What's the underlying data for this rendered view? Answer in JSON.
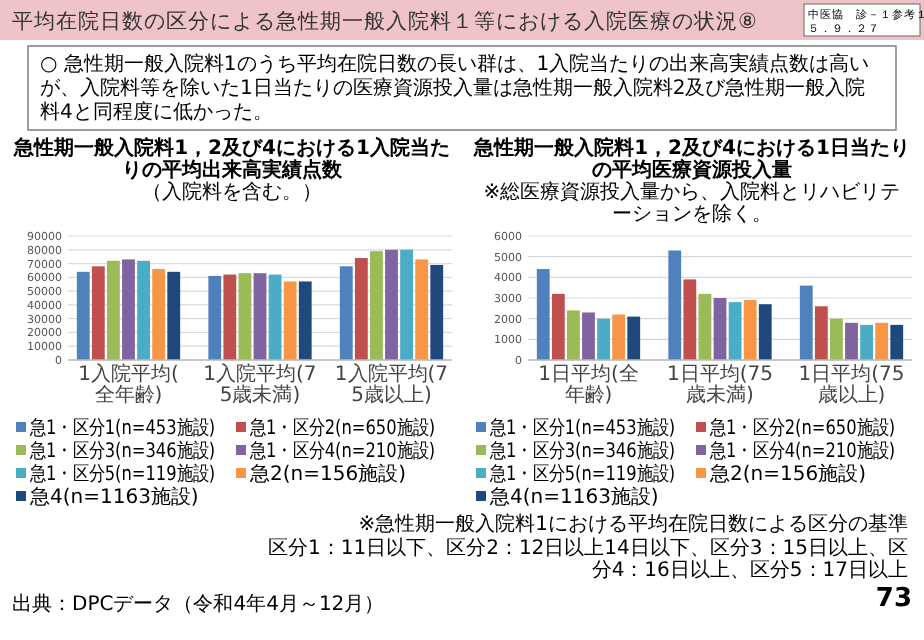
{
  "chart_data": [
    {
      "type": "other",
      "title": "平均在院日数の区分による急性期一般入院料１等における入院医療の状況⑧",
      "annotations": [
        "中医協　診－１参考１",
        "５．９．２７",
        "○ 急性期一般入院料1のうち平均在院日数の長い群は、1入院当たりの出来高実績点数は高いが、入院料等を除いた1日当たりの医療資源投入量は急性期一般入院料2及び急性期一般入院料4と同程度に低かった。",
        "※急性期一般入院料1における平均在院日数による区分の基準",
        "区分1：11日以下、区分2：12日以上14日以下、区分3：15日以上、区分4：16日以上、区分5：17日以上",
        "出典：DPCデータ（令和4年4月～12月）",
        "73"
      ]
    },
    {
      "type": "bar",
      "title": "急性期一般入院料1，2及び4における1入院当たりの平均出来高実績点数",
      "subtitle": "（入院料を含む。）",
      "categories": [
        "1入院平均(全年齢)",
        "1入院平均(75歳未満)",
        "1入院平均(75歳以上)"
      ],
      "ylim": [
        0,
        90000
      ],
      "yticks": [
        0,
        10000,
        20000,
        30000,
        40000,
        50000,
        60000,
        70000,
        80000,
        90000
      ],
      "grid": "y",
      "legend": "bottom",
      "series": [
        {
          "name": "急1・区分1(n=453施設)",
          "color": "#4f81bd",
          "values": [
            64000,
            61000,
            68000
          ]
        },
        {
          "name": "急1・区分2(n=650施設)",
          "color": "#c0504d",
          "values": [
            68000,
            62000,
            74000
          ]
        },
        {
          "name": "急1・区分3(n=346施設)",
          "color": "#9bbb59",
          "values": [
            72000,
            63000,
            79000
          ]
        },
        {
          "name": "急1・区分4(n=210施設)",
          "color": "#8064a2",
          "values": [
            73000,
            63000,
            80000
          ]
        },
        {
          "name": "急1・区分5(n=119施設)",
          "color": "#4bacc6",
          "values": [
            72000,
            62000,
            80000
          ]
        },
        {
          "name": "急2(n=156施設)",
          "color": "#f79646",
          "values": [
            66000,
            57000,
            73000
          ]
        },
        {
          "name": "急4(n=1163施設)",
          "color": "#1f497d",
          "values": [
            64000,
            57000,
            69000
          ]
        }
      ]
    },
    {
      "type": "bar",
      "title": "急性期一般入院料1，2及び4における1日当たりの平均医療資源投入量",
      "subtitle": "※総医療資源投入量から、入院料とリハビリテーションを除く。",
      "categories": [
        "1日平均(全年齢)",
        "1日平均(75歳未満)",
        "1日平均(75歳以上)"
      ],
      "ylim": [
        0,
        6000
      ],
      "yticks": [
        0,
        1000,
        2000,
        3000,
        4000,
        5000,
        6000
      ],
      "grid": "y",
      "legend": "bottom",
      "series": [
        {
          "name": "急1・区分1(n=453施設)",
          "color": "#4f81bd",
          "values": [
            4400,
            5300,
            3600
          ]
        },
        {
          "name": "急1・区分2(n=650施設)",
          "color": "#c0504d",
          "values": [
            3200,
            3900,
            2600
          ]
        },
        {
          "name": "急1・区分3(n=346施設)",
          "color": "#9bbb59",
          "values": [
            2400,
            3200,
            2000
          ]
        },
        {
          "name": "急1・区分4(n=210施設)",
          "color": "#8064a2",
          "values": [
            2300,
            3000,
            1800
          ]
        },
        {
          "name": "急1・区分5(n=119施設)",
          "color": "#4bacc6",
          "values": [
            2000,
            2800,
            1700
          ]
        },
        {
          "name": "急2(n=156施設)",
          "color": "#f79646",
          "values": [
            2200,
            2900,
            1800
          ]
        },
        {
          "name": "急4(n=1163施設)",
          "color": "#1f497d",
          "values": [
            2100,
            2700,
            1700
          ]
        }
      ]
    }
  ]
}
